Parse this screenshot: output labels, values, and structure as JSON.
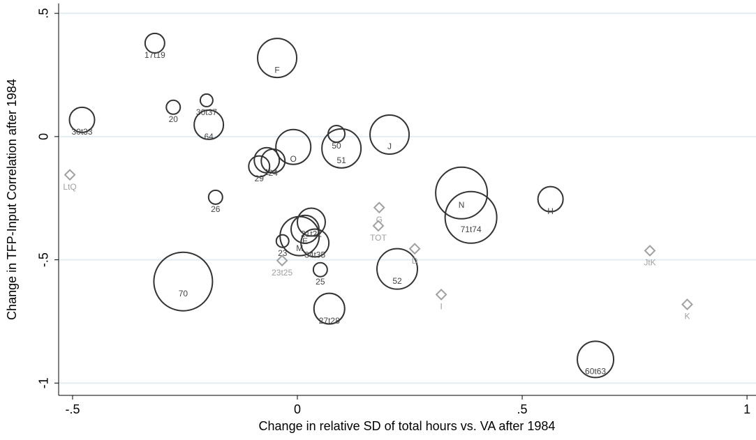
{
  "chart_data": {
    "type": "scatter",
    "x_label": "Change in relative SD of total hours vs. VA after 1984",
    "y_label": "Change in TFP-Input Correlation after 1984",
    "xlim": [
      -0.531,
      1.02
    ],
    "ylim": [
      -1.05,
      0.54
    ],
    "xticks": [
      {
        "value": -0.5,
        "label": "-.5"
      },
      0,
      {
        "value": 0.5,
        "label": ".5"
      },
      1
    ],
    "yticks": [
      -1,
      {
        "value": -0.5,
        "label": "-.5"
      },
      0,
      {
        "value": 0.5,
        "label": ".5"
      }
    ],
    "grid": true,
    "series": [
      {
        "marker": "circle",
        "color": "#333333",
        "labels": [
          "17t19",
          "F",
          "20",
          "30t37",
          "30t33",
          "64",
          "50",
          "51",
          "J",
          "O",
          "29",
          "1",
          "24",
          "26",
          "N",
          "71t74",
          "H",
          "23",
          "M",
          "E",
          "21t22",
          "34t35",
          "25",
          "70",
          "52",
          "27t28",
          "60t63"
        ],
        "x": [
          -0.317,
          -0.045,
          -0.276,
          -0.202,
          -0.479,
          -0.197,
          0.087,
          0.098,
          0.205,
          -0.009,
          -0.085,
          -0.068,
          -0.054,
          -0.182,
          0.365,
          0.386,
          0.563,
          -0.033,
          0.005,
          0.017,
          0.031,
          0.039,
          0.051,
          -0.254,
          0.222,
          0.071,
          0.663
        ],
        "values": [
          0.379,
          0.319,
          0.119,
          0.147,
          0.068,
          0.048,
          0.011,
          -0.048,
          0.008,
          -0.042,
          -0.121,
          -0.096,
          -0.099,
          -0.246,
          -0.229,
          -0.328,
          -0.254,
          -0.424,
          -0.404,
          -0.376,
          -0.347,
          -0.432,
          -0.54,
          -0.588,
          -0.537,
          -0.698,
          -0.904
        ],
        "sizes": [
          1.96,
          7.84,
          1.0,
          0.81,
          3.24,
          4.41,
          1.44,
          7.84,
          7.84,
          6.25,
          2.25,
          3.24,
          2.89,
          1.0,
          13.69,
          13.69,
          3.24,
          0.81,
          7.84,
          4.0,
          4.0,
          4.0,
          1.0,
          17.64,
          8.41,
          4.84,
          6.76
        ]
      },
      {
        "marker": "diamond",
        "color": "#a0a0a0",
        "labels": [
          "LtQ",
          "G",
          "TOT",
          "D",
          "23t25",
          "I",
          "JtK",
          "K"
        ],
        "x": [
          -0.506,
          0.182,
          0.18,
          0.261,
          -0.034,
          0.32,
          0.784,
          0.867
        ],
        "values": [
          -0.155,
          -0.288,
          -0.362,
          -0.455,
          -0.503,
          -0.641,
          -0.463,
          -0.681
        ]
      }
    ]
  }
}
